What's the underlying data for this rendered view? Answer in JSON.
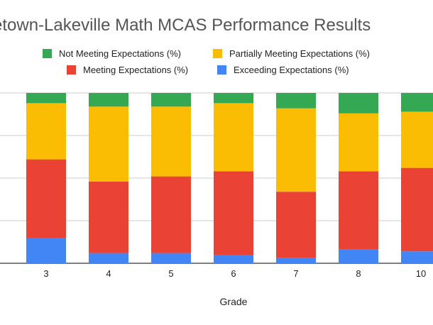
{
  "chart_data": {
    "type": "bar",
    "stacked": true,
    "title": "Freetown-Lakeville Math MCAS Performance Results",
    "title_visible": "etown-Lakeville Math MCAS Performance Results",
    "xlabel": "Grade",
    "ylabel": "",
    "ylim": [
      0,
      100
    ],
    "categories": [
      "3",
      "4",
      "5",
      "6",
      "7",
      "8",
      "10"
    ],
    "series": [
      {
        "name": "Exceeding Expectations (%)",
        "color": "#4285f4",
        "values": [
          15,
          6,
          6,
          5,
          3,
          8,
          7
        ]
      },
      {
        "name": "Meeting Expectations (%)",
        "color": "#ea4335",
        "values": [
          46,
          42,
          45,
          49,
          39,
          46,
          49
        ]
      },
      {
        "name": "Partially Meeting Expectations (%)",
        "color": "#fbbc04",
        "values": [
          33,
          44,
          41,
          40,
          49,
          34,
          33
        ]
      },
      {
        "name": "Not Meeting Expectations (%)",
        "color": "#34a853",
        "values": [
          6,
          8,
          8,
          6,
          9,
          12,
          11
        ]
      }
    ],
    "legend": [
      {
        "label": "Not Meeting Expectations (%)",
        "color": "#34a853"
      },
      {
        "label": "Partially Meeting Expectations (%)",
        "color": "#fbbc04"
      },
      {
        "label": "Meeting Expectations (%)",
        "color": "#ea4335"
      },
      {
        "label": "Exceeding Expectations (%)",
        "color": "#4285f4"
      }
    ],
    "grid": true,
    "legend_position": "top"
  }
}
